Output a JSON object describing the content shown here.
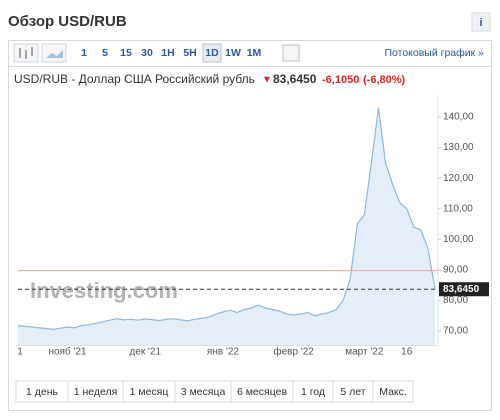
{
  "header": {
    "title": "Обзор USD/RUB",
    "info": "i"
  },
  "toolbar": {
    "intervals": [
      "1",
      "5",
      "15",
      "30",
      "1H",
      "5H",
      "1D",
      "1W",
      "1M"
    ],
    "selected": 6,
    "stream_link": "Потоковый график »"
  },
  "quote": {
    "name": "USD/RUB - Доллар США Российский рубль",
    "arrow": "▼",
    "price": "83,6450",
    "change": "-6,1050",
    "change_pct": "(-6,80%)"
  },
  "periods": [
    "1 день",
    "1 неделя",
    "1 месяц",
    "3 месяца",
    "6 месяцев",
    "1 год",
    "5 лет",
    "Макс."
  ],
  "chart_data": {
    "type": "area",
    "watermark": "Investing.com",
    "color": "#8db8dc",
    "fill": "#e4eef8",
    "categories": [
      "1",
      null,
      null,
      null,
      null,
      null,
      null,
      "нояб '21",
      null,
      null,
      null,
      null,
      null,
      null,
      null,
      null,
      null,
      null,
      "дек '21",
      null,
      null,
      null,
      null,
      null,
      null,
      null,
      null,
      null,
      null,
      "янв '22",
      null,
      null,
      null,
      null,
      null,
      null,
      null,
      null,
      null,
      "февр '22",
      null,
      null,
      null,
      null,
      null,
      null,
      null,
      null,
      null,
      "март '22",
      null,
      null,
      null,
      null,
      null,
      "16",
      null,
      null,
      null,
      null
    ],
    "values": [
      71.8,
      71.5,
      71.3,
      71.0,
      70.8,
      70.5,
      70.9,
      71.3,
      71.0,
      71.8,
      72.0,
      72.5,
      73.0,
      73.5,
      74.0,
      73.6,
      73.8,
      73.5,
      73.9,
      73.7,
      73.4,
      73.8,
      74.0,
      73.6,
      73.3,
      73.8,
      74.2,
      74.5,
      75.5,
      76.2,
      76.8,
      76.0,
      77.0,
      77.5,
      78.5,
      77.5,
      77.0,
      76.5,
      75.5,
      75.2,
      75.5,
      76.0,
      75.0,
      75.5,
      76.0,
      77.0,
      80.0,
      87.0,
      105.0,
      108.0,
      125.0,
      143.0,
      125.0,
      118.0,
      112.0,
      110.0,
      104.0,
      103.0,
      97.0,
      83.645
    ],
    "last_price": 83.645,
    "prev_close": 89.75,
    "ylim": [
      65.4,
      147.2
    ],
    "yticks": [
      {
        "value": 70,
        "label": "70,00"
      },
      {
        "value": 80,
        "label": "80,00"
      },
      {
        "value": 90,
        "label": "90,00"
      },
      {
        "value": 100,
        "label": "100,00"
      },
      {
        "value": 110,
        "label": "110,00"
      },
      {
        "value": 120,
        "label": "120,00"
      },
      {
        "value": 130,
        "label": "130,00"
      },
      {
        "value": 140,
        "label": "140,00"
      }
    ]
  }
}
